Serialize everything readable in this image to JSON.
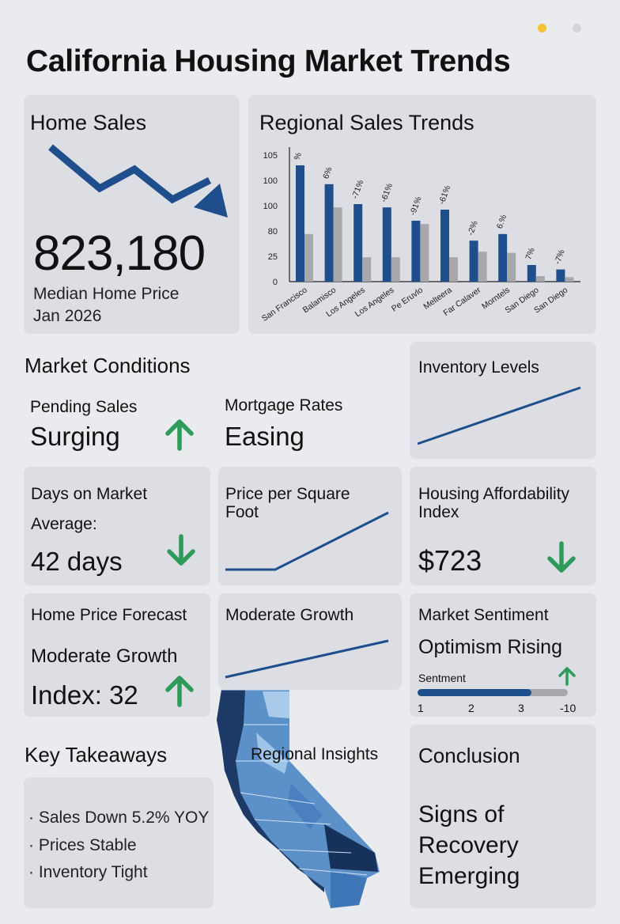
{
  "page": {
    "title": "California Housing Market Trends"
  },
  "colors": {
    "accent": "#1f4e8c",
    "gray_bar": "#a8a8ab",
    "up_green": "#2e9b5a",
    "down_green": "#2e9b5a"
  },
  "home_sales": {
    "title": "Home Sales",
    "value": "823,180",
    "caption_line1": "Median Home Price",
    "caption_line2": "Jan 2026",
    "trend_icon": "arrow-down-trend-icon"
  },
  "chart_data": {
    "type": "bar",
    "title": "Regional Sales Trends",
    "y_ticks": [
      "105",
      "100",
      "100",
      "80",
      "25",
      "0"
    ],
    "categories": [
      "San Francisco",
      "Balamisco",
      "Los Angeles",
      "Los Angeles",
      "Pe Eruvlo",
      "Melteera",
      "Far Calaver",
      "Morntels",
      "San Diego",
      "San Diego"
    ],
    "series": [
      {
        "values": [
          105,
          88,
          70,
          67,
          55,
          65,
          37,
          43,
          15,
          11
        ]
      },
      {
        "values": [
          43,
          67,
          22,
          22,
          52,
          22,
          27,
          26,
          5,
          4
        ]
      }
    ],
    "bar_labels": [
      "%",
      "6%",
      "-71%",
      "-61%",
      "-91%",
      "-61%",
      "-2%",
      "6.%",
      "7%",
      "-7%"
    ],
    "ylim": [
      0,
      110
    ],
    "grid": false
  },
  "market_conditions": {
    "title": "Market Conditions",
    "pending_label": "Pending Sales",
    "pending_value": "Surging",
    "mortgage_label": "Mortgage Rates",
    "mortgage_value": "Easing"
  },
  "inventory": {
    "title": "Inventory Levels",
    "trend": [
      0.2,
      0.95
    ]
  },
  "days_on_market": {
    "label1": "Days on Market",
    "label2": "Average:",
    "value": "42 days"
  },
  "price_sqft": {
    "title_line1": "Price per Square",
    "title_line2": "Foot"
  },
  "affordability": {
    "title_line1": "Housing Affordability",
    "title_line2": "Index",
    "value": "$723"
  },
  "forecast": {
    "label1": "Home Price Forecast",
    "label2": "Moderate Growth",
    "value": "Index: 32"
  },
  "moderate_growth": {
    "title": "Moderate Growth"
  },
  "sentiment": {
    "title": "Market Sentiment",
    "subtitle": "Optimism Rising",
    "bar_label": "Sentment",
    "scale": [
      "1",
      "2",
      "3",
      "-10"
    ],
    "level_fraction": 0.76
  },
  "key_takeaways": {
    "title": "Key Takeaways",
    "items": [
      "Sales Down 5.2% YOY",
      "Prices Stable",
      "Inventory Tight"
    ]
  },
  "regional_insights": {
    "title": "Regional Insights"
  },
  "conclusion": {
    "title": "Conclusion",
    "line1": "Signs of",
    "line2": "Recovery",
    "line3": "Emerging"
  }
}
